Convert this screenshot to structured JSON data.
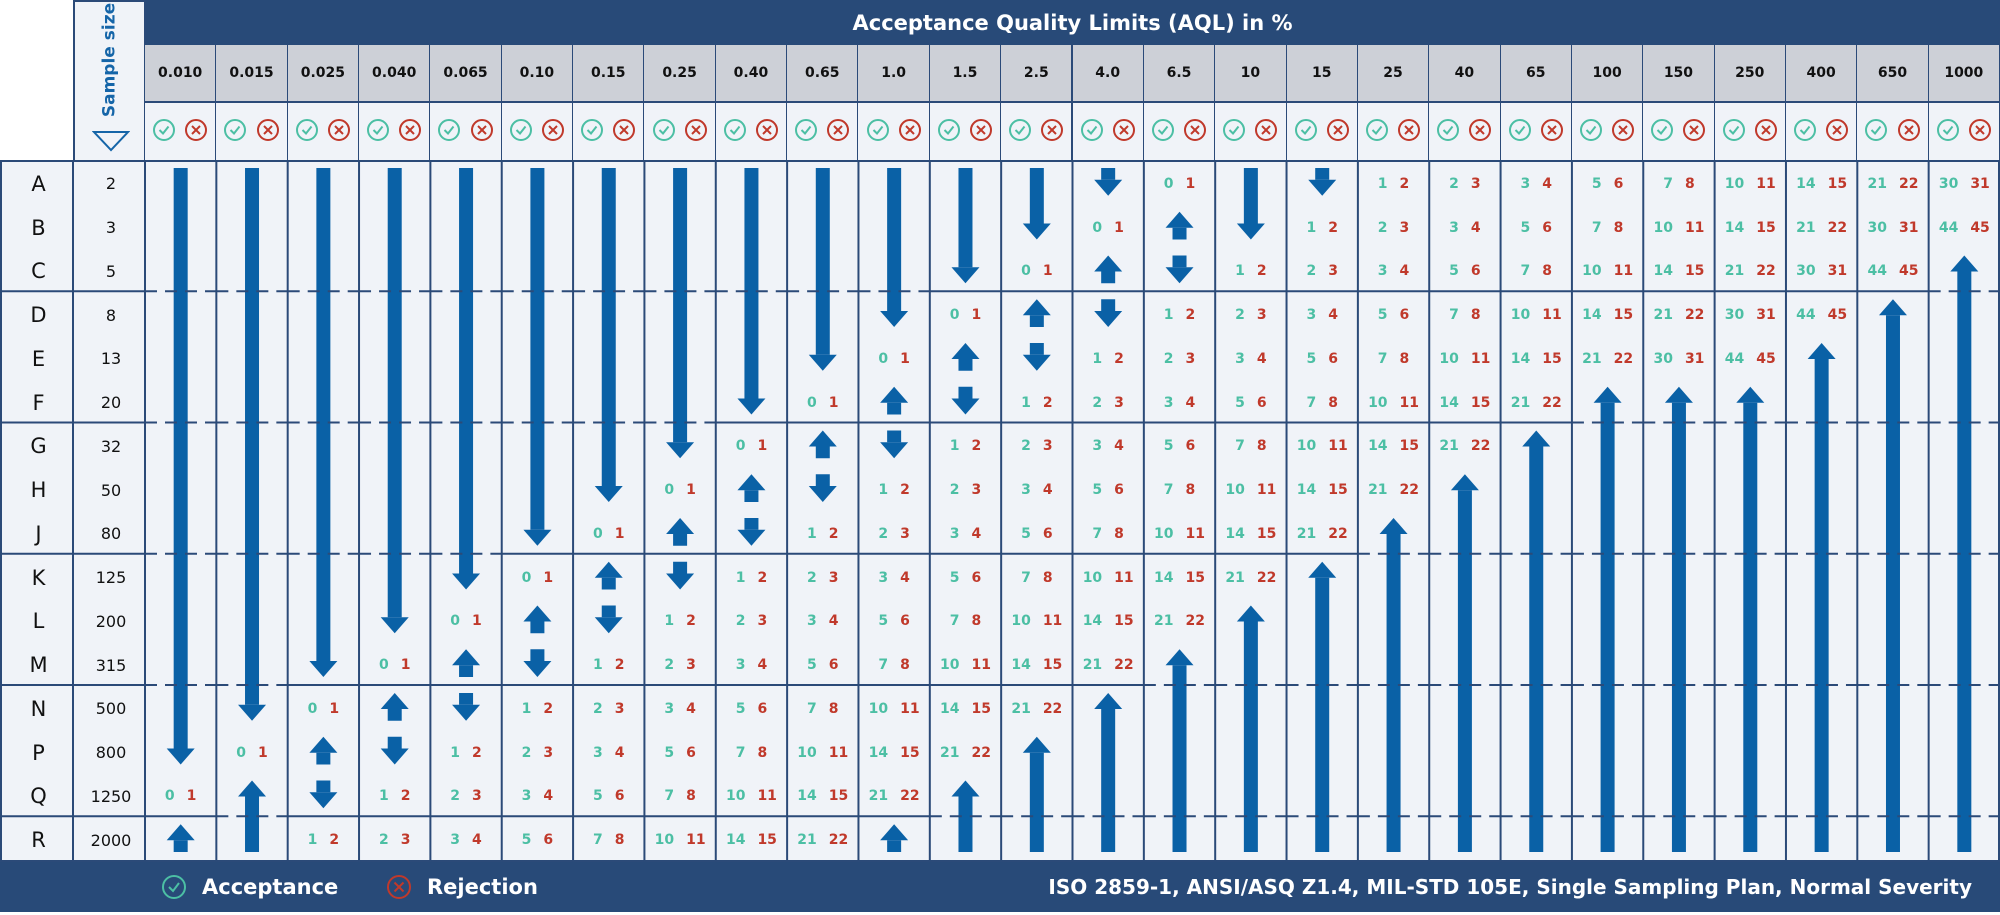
{
  "header": {
    "title": "Acceptance Quality Limits (AQL) in %",
    "sample_size_label": "Sample size"
  },
  "aql_levels": [
    "0.010",
    "0.015",
    "0.025",
    "0.040",
    "0.065",
    "0.10",
    "0.15",
    "0.25",
    "0.40",
    "0.65",
    "1.0",
    "1.5",
    "2.5",
    "4.0",
    "6.5",
    "10",
    "15",
    "25",
    "40",
    "65",
    "100",
    "150",
    "250",
    "400",
    "650",
    "1000"
  ],
  "groups_end_after_rows": [
    "C",
    "F",
    "J",
    "M",
    "Q"
  ],
  "legend": {
    "acceptance": "Acceptance",
    "rejection": "Rejection",
    "standard": "ISO 2859-1, ANSI/ASQ Z1.4, MIL-STD 105E, Single Sampling Plan, Normal Severity"
  },
  "colors": {
    "header": "#284a78",
    "arrow": "#0a61a6",
    "acceptance": "#4cbfa4",
    "rejection": "#c0392b",
    "grid": "#2b4a78"
  },
  "rows": [
    {
      "code": "A",
      "size": "2",
      "cells": [
        "v",
        "v",
        "v",
        "v",
        "v",
        "v",
        "v",
        "v",
        "v",
        "v",
        "v",
        "v",
        "v",
        "v",
        "0 1",
        "v",
        "v",
        "1 2",
        "2 3",
        "3 4",
        "5 6",
        "7 8",
        "10 11",
        "14 15",
        "21 22",
        "30 31"
      ]
    },
    {
      "code": "B",
      "size": "3",
      "cells": [
        "v",
        "v",
        "v",
        "v",
        "v",
        "v",
        "v",
        "v",
        "v",
        "v",
        "v",
        "v",
        "v",
        "0 1",
        "^",
        "v",
        "1 2",
        "2 3",
        "3 4",
        "5 6",
        "7 8",
        "10 11",
        "14 15",
        "21 22",
        "30 31",
        "44 45"
      ]
    },
    {
      "code": "C",
      "size": "5",
      "cells": [
        "v",
        "v",
        "v",
        "v",
        "v",
        "v",
        "v",
        "v",
        "v",
        "v",
        "v",
        "v",
        "0 1",
        "^",
        "v",
        "1 2",
        "2 3",
        "3 4",
        "5 6",
        "7 8",
        "10 11",
        "14 15",
        "21 22",
        "30 31",
        "44 45",
        "^"
      ]
    },
    {
      "code": "D",
      "size": "8",
      "cells": [
        "v",
        "v",
        "v",
        "v",
        "v",
        "v",
        "v",
        "v",
        "v",
        "v",
        "v",
        "0 1",
        "^",
        "v",
        "1 2",
        "2 3",
        "3 4",
        "5 6",
        "7 8",
        "10 11",
        "14 15",
        "21 22",
        "30 31",
        "44 45",
        "^",
        "^"
      ]
    },
    {
      "code": "E",
      "size": "13",
      "cells": [
        "v",
        "v",
        "v",
        "v",
        "v",
        "v",
        "v",
        "v",
        "v",
        "v",
        "0 1",
        "^",
        "v",
        "1 2",
        "2 3",
        "3 4",
        "5 6",
        "7 8",
        "10 11",
        "14 15",
        "21 22",
        "30 31",
        "44 45",
        "^",
        "^",
        "^"
      ]
    },
    {
      "code": "F",
      "size": "20",
      "cells": [
        "v",
        "v",
        "v",
        "v",
        "v",
        "v",
        "v",
        "v",
        "v",
        "0 1",
        "^",
        "v",
        "1 2",
        "2 3",
        "3 4",
        "5 6",
        "7 8",
        "10 11",
        "14 15",
        "21 22",
        "^",
        "^",
        "^",
        "^",
        "^",
        "^"
      ]
    },
    {
      "code": "G",
      "size": "32",
      "cells": [
        "v",
        "v",
        "v",
        "v",
        "v",
        "v",
        "v",
        "v",
        "0 1",
        "^",
        "v",
        "1 2",
        "2 3",
        "3 4",
        "5 6",
        "7 8",
        "10 11",
        "14 15",
        "21 22",
        "^",
        "^",
        "^",
        "^",
        "^",
        "^",
        "^"
      ]
    },
    {
      "code": "H",
      "size": "50",
      "cells": [
        "v",
        "v",
        "v",
        "v",
        "v",
        "v",
        "v",
        "0 1",
        "^",
        "v",
        "1 2",
        "2 3",
        "3 4",
        "5 6",
        "7 8",
        "10 11",
        "14 15",
        "21 22",
        "^",
        "^",
        "^",
        "^",
        "^",
        "^",
        "^",
        "^"
      ]
    },
    {
      "code": "J",
      "size": "80",
      "cells": [
        "v",
        "v",
        "v",
        "v",
        "v",
        "v",
        "0 1",
        "^",
        "v",
        "1 2",
        "2 3",
        "3 4",
        "5 6",
        "7 8",
        "10 11",
        "14 15",
        "21 22",
        "^",
        "^",
        "^",
        "^",
        "^",
        "^",
        "^",
        "^",
        "^"
      ]
    },
    {
      "code": "K",
      "size": "125",
      "cells": [
        "v",
        "v",
        "v",
        "v",
        "v",
        "0 1",
        "^",
        "v",
        "1 2",
        "2 3",
        "3 4",
        "5 6",
        "7 8",
        "10 11",
        "14 15",
        "21 22",
        "^",
        "^",
        "^",
        "^",
        "^",
        "^",
        "^",
        "^",
        "^",
        "^"
      ]
    },
    {
      "code": "L",
      "size": "200",
      "cells": [
        "v",
        "v",
        "v",
        "v",
        "0 1",
        "^",
        "v",
        "1 2",
        "2 3",
        "3 4",
        "5 6",
        "7 8",
        "10 11",
        "14 15",
        "21 22",
        "^",
        "^",
        "^",
        "^",
        "^",
        "^",
        "^",
        "^",
        "^",
        "^",
        "^"
      ]
    },
    {
      "code": "M",
      "size": "315",
      "cells": [
        "v",
        "v",
        "v",
        "0 1",
        "^",
        "v",
        "1 2",
        "2 3",
        "3 4",
        "5 6",
        "7 8",
        "10 11",
        "14 15",
        "21 22",
        "^",
        "^",
        "^",
        "^",
        "^",
        "^",
        "^",
        "^",
        "^",
        "^",
        "^",
        "^"
      ]
    },
    {
      "code": "N",
      "size": "500",
      "cells": [
        "v",
        "v",
        "0 1",
        "^",
        "v",
        "1 2",
        "2 3",
        "3 4",
        "5 6",
        "7 8",
        "10 11",
        "14 15",
        "21 22",
        "^",
        "^",
        "^",
        "^",
        "^",
        "^",
        "^",
        "^",
        "^",
        "^",
        "^",
        "^",
        "^"
      ]
    },
    {
      "code": "P",
      "size": "800",
      "cells": [
        "v",
        "0 1",
        "^",
        "v",
        "1 2",
        "2 3",
        "3 4",
        "5 6",
        "7 8",
        "10 11",
        "14 15",
        "21 22",
        "^",
        "^",
        "^",
        "^",
        "^",
        "^",
        "^",
        "^",
        "^",
        "^",
        "^",
        "^",
        "^",
        "^"
      ]
    },
    {
      "code": "Q",
      "size": "1250",
      "cells": [
        "0 1",
        "^",
        "v",
        "1 2",
        "2 3",
        "3 4",
        "5 6",
        "7 8",
        "10 11",
        "14 15",
        "21 22",
        "^",
        "^",
        "^",
        "^",
        "^",
        "^",
        "^",
        "^",
        "^",
        "^",
        "^",
        "^",
        "^",
        "^",
        "^"
      ]
    },
    {
      "code": "R",
      "size": "2000",
      "cells": [
        "^",
        "^",
        "1 2",
        "2 3",
        "3 4",
        "5 6",
        "7 8",
        "10 11",
        "14 15",
        "21 22",
        "^",
        "^",
        "^",
        "^",
        "^",
        "^",
        "^",
        "^",
        "^",
        "^",
        "^",
        "^",
        "^",
        "^",
        "^",
        "^"
      ]
    }
  ]
}
